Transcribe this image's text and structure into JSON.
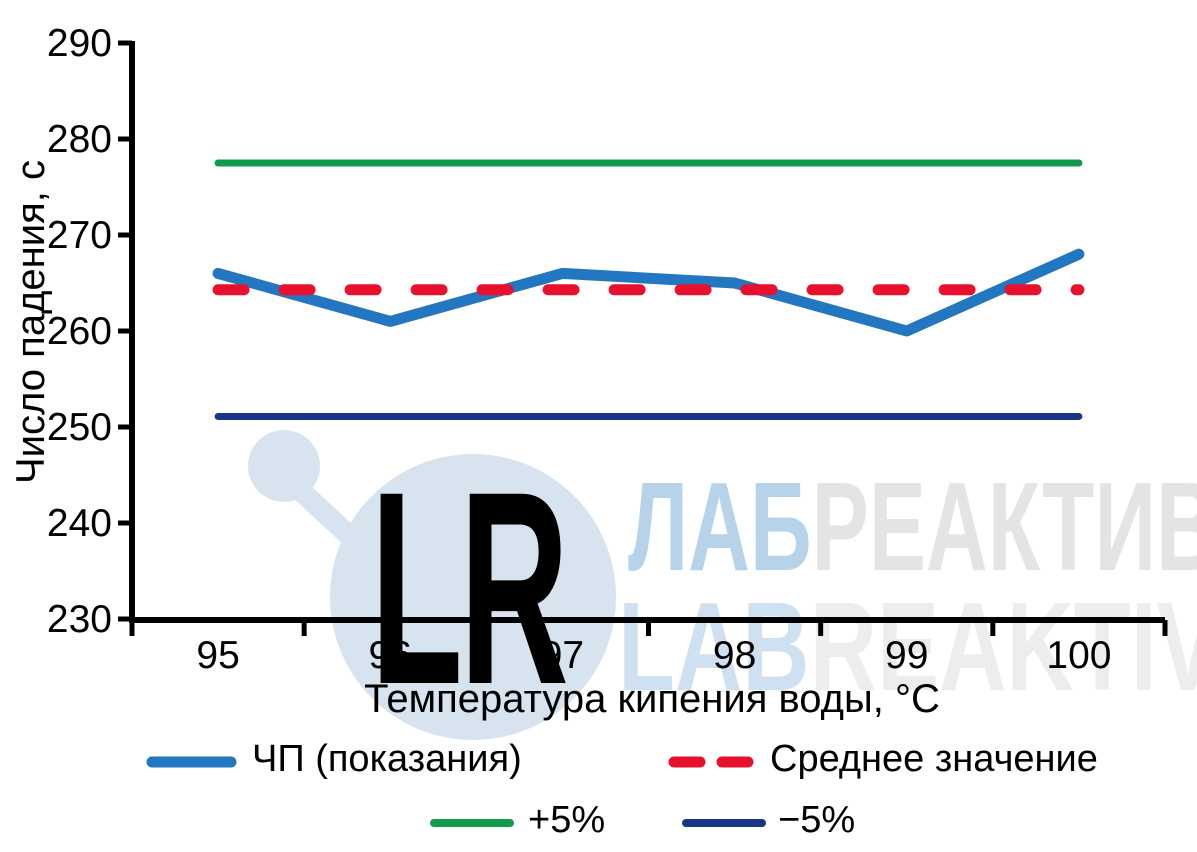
{
  "chart_data": {
    "type": "line",
    "title": "",
    "xlabel": "Температура кипения воды, °C",
    "ylabel": "Число падения, с",
    "x_categories": [
      "95",
      "96",
      "97",
      "98",
      "99",
      "100"
    ],
    "y_ticks": [
      "290",
      "280",
      "270",
      "260",
      "250",
      "240",
      "230"
    ],
    "ylim": [
      230,
      290
    ],
    "xlim_categories": [
      95,
      100
    ],
    "grid": false,
    "legend_position": "bottom",
    "series": [
      {
        "name": "ЧП (показания)",
        "color": "#2277c0",
        "style": "solid-thick",
        "values": [
          266,
          261,
          266,
          265,
          260,
          268
        ]
      },
      {
        "name": "Среднее значение",
        "color": "#e8112d",
        "style": "dashed",
        "values": [
          264.3,
          264.3,
          264.3,
          264.3,
          264.3,
          264.3
        ]
      },
      {
        "name": "+5%",
        "color": "#0f9b47",
        "style": "solid",
        "values": [
          277.5,
          277.5,
          277.5,
          277.5,
          277.5,
          277.5
        ]
      },
      {
        "name": "−5%",
        "color": "#1a3487",
        "style": "solid",
        "values": [
          251.1,
          251.1,
          251.1,
          251.1,
          251.1,
          251.1
        ]
      }
    ]
  },
  "watermark": {
    "logo_letters": "LR",
    "line1_blue": "ЛАБ",
    "line1_gray": "РЕАКТИВ",
    "line2_blue": "LAB",
    "line2_gray": "REAKTIV",
    "circle_color": "#d8e3f0",
    "line1_blue_color": "#b6d3ea",
    "line1_gray_color": "#e4e4e6",
    "line2_blue_color": "#cfe0f1",
    "line2_gray_color": "#ededef"
  },
  "axis_color": "#000000"
}
